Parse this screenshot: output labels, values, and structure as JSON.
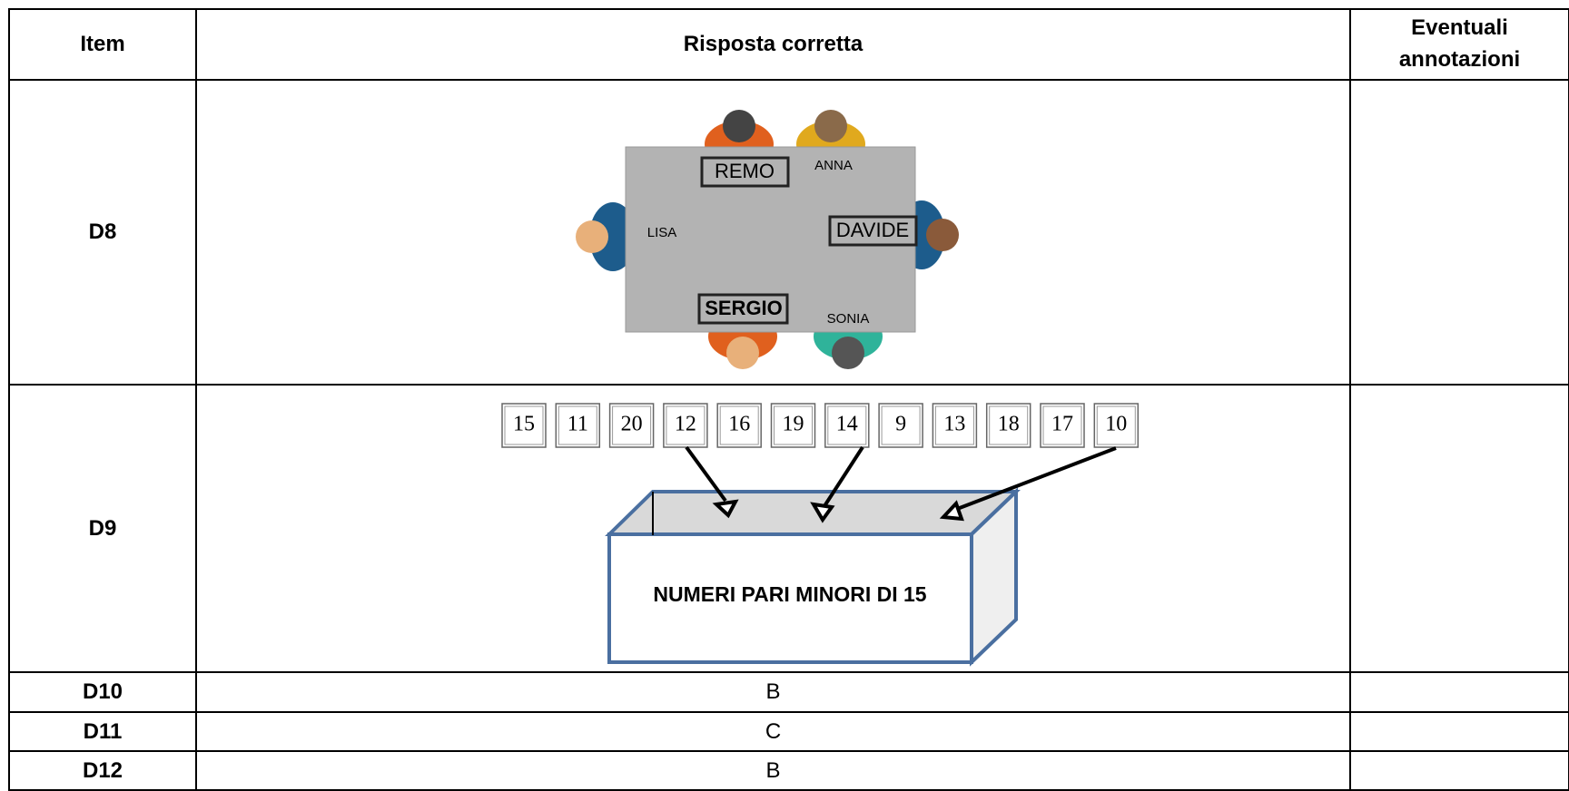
{
  "table": {
    "header": [
      "Item",
      "Risposta corretta",
      "Eventuali annotazioni"
    ],
    "rows": [
      {
        "item": "D8",
        "answer": {
          "names": [
            "REMO",
            "ANNA",
            "LISA",
            "DAVIDE",
            "SERGIO",
            "SONIA"
          ]
        }
      },
      {
        "item": "D9",
        "answer": {
          "cards": [
            "15",
            "11",
            "20",
            "12",
            "16",
            "19",
            "14",
            "9",
            "13",
            "18",
            "17",
            "10"
          ],
          "box_label": "NUMERI PARI MINORI DI 15"
        }
      },
      {
        "item": "D10",
        "answer": "B"
      },
      {
        "item": "D11",
        "answer": "C"
      },
      {
        "item": "D12",
        "answer": "B"
      }
    ]
  }
}
